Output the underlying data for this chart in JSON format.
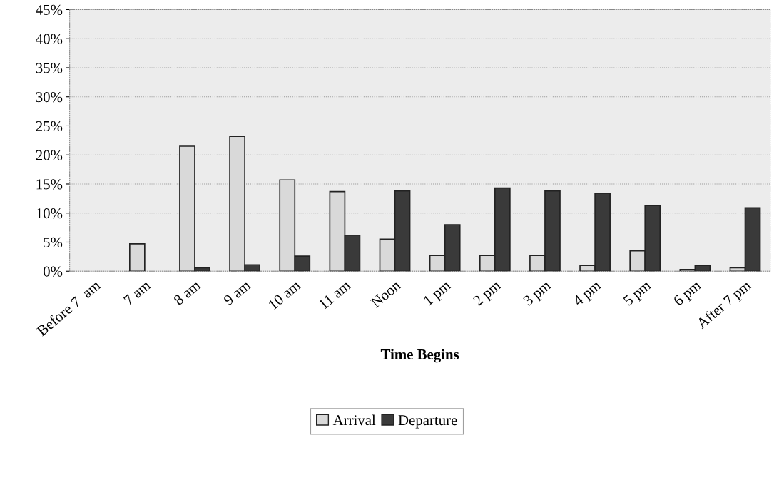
{
  "chart_data": {
    "type": "bar",
    "xlabel": "Time Begins",
    "categories": [
      "Before 7  am",
      "7 am",
      "8 am",
      "9 am",
      "10 am",
      "11 am",
      "Noon",
      "1 pm",
      "2 pm",
      "3 pm",
      "4 pm",
      "5 pm",
      "6 pm",
      "After 7 pm"
    ],
    "series": [
      {
        "name": "Arrival",
        "color": "#d9d9d9",
        "values": [
          0,
          4.7,
          21.5,
          23.2,
          15.7,
          13.7,
          5.5,
          2.7,
          2.7,
          2.7,
          1.0,
          3.5,
          0.3,
          0.6
        ]
      },
      {
        "name": "Departure",
        "color": "#3a3a3a",
        "values": [
          0,
          0,
          0.6,
          1.1,
          2.6,
          6.2,
          13.8,
          8.0,
          14.3,
          13.8,
          13.4,
          11.3,
          1.0,
          10.9
        ]
      }
    ],
    "ylim": [
      0,
      45
    ],
    "yticks": [
      {
        "value": 0,
        "label": "0%"
      },
      {
        "value": 5,
        "label": "5%"
      },
      {
        "value": 10,
        "label": "10%"
      },
      {
        "value": 15,
        "label": "15%"
      },
      {
        "value": 20,
        "label": "20%"
      },
      {
        "value": 25,
        "label": "25%"
      },
      {
        "value": 30,
        "label": "30%"
      },
      {
        "value": 35,
        "label": "35%"
      },
      {
        "value": 40,
        "label": "40%"
      },
      {
        "value": 45,
        "label": "45%"
      }
    ],
    "grid": "y",
    "legend": "bottom"
  }
}
